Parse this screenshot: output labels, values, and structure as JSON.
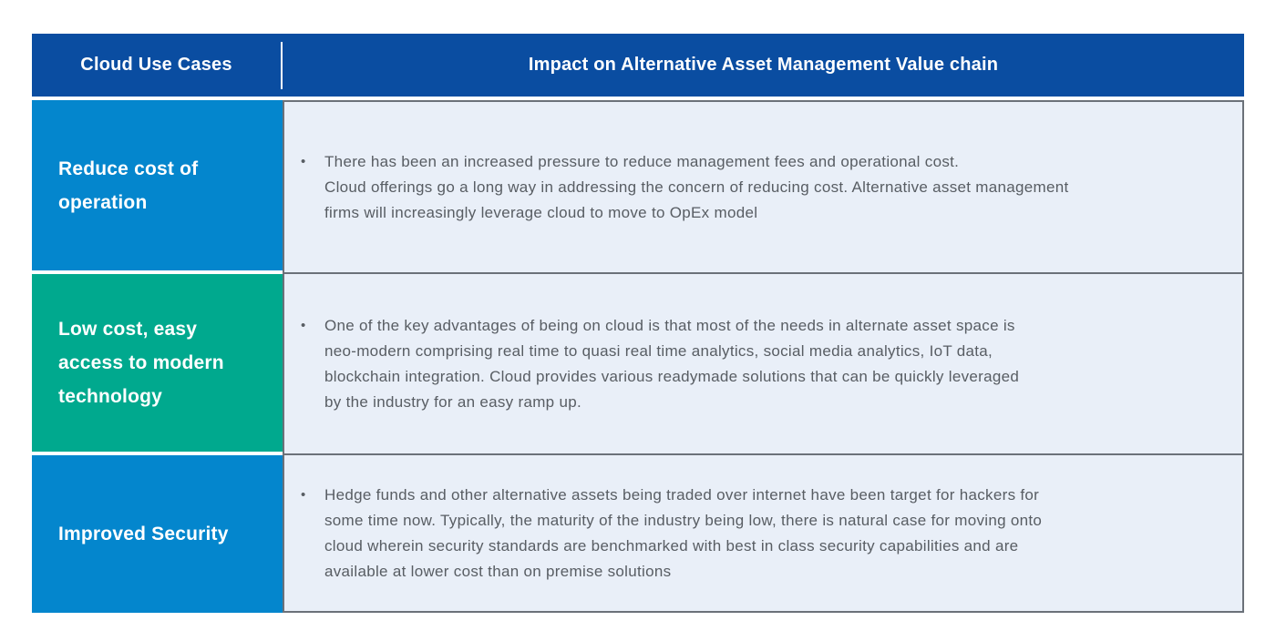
{
  "colors": {
    "header_bg": "#0A4DA1",
    "row_blue": "#0486CD",
    "row_teal": "#00A98E",
    "panel_bg": "#E9EFF8",
    "border_gray": "#6B7179",
    "body_text": "#585D63",
    "header_text": "#FFFFFF"
  },
  "table": {
    "header": {
      "col1": "Cloud Use Cases",
      "col2": "Impact on Alternative Asset Management Value chain"
    },
    "rows": [
      {
        "label": "Reduce cost of operation",
        "label_lines": [
          "Reduce cost of",
          "operation"
        ],
        "bg": "#0486CD",
        "bullet": "•",
        "text_lines": [
          "There has been an increased pressure to reduce management fees and operational cost.",
          "Cloud offerings go a long way in addressing the concern of reducing cost. Alternative asset management",
          "firms will increasingly leverage cloud to move to OpEx model"
        ]
      },
      {
        "label": "Low cost, easy access to modern technology",
        "label_lines": [
          "Low cost, easy",
          "access to modern",
          "technology"
        ],
        "bg": "#00A98E",
        "bullet": "•",
        "text_lines": [
          "One of the key advantages of being on cloud is that most of the needs in alternate asset space is",
          "neo-modern comprising real time to quasi real time analytics, social media analytics, IoT data,",
          "blockchain integration. Cloud provides various readymade solutions that can be quickly leveraged",
          "by the industry for an easy ramp up."
        ]
      },
      {
        "label": "Improved Security",
        "label_lines": [
          "Improved Security"
        ],
        "bg": "#0486CD",
        "bullet": "•",
        "text_lines": [
          "Hedge funds and other alternative assets being traded over internet have been target for hackers for",
          "some time now. Typically, the maturity of the industry being low, there is natural case for moving onto",
          "cloud wherein security standards are benchmarked with best in class security capabilities and are",
          "available at lower cost than on premise solutions"
        ]
      }
    ]
  }
}
